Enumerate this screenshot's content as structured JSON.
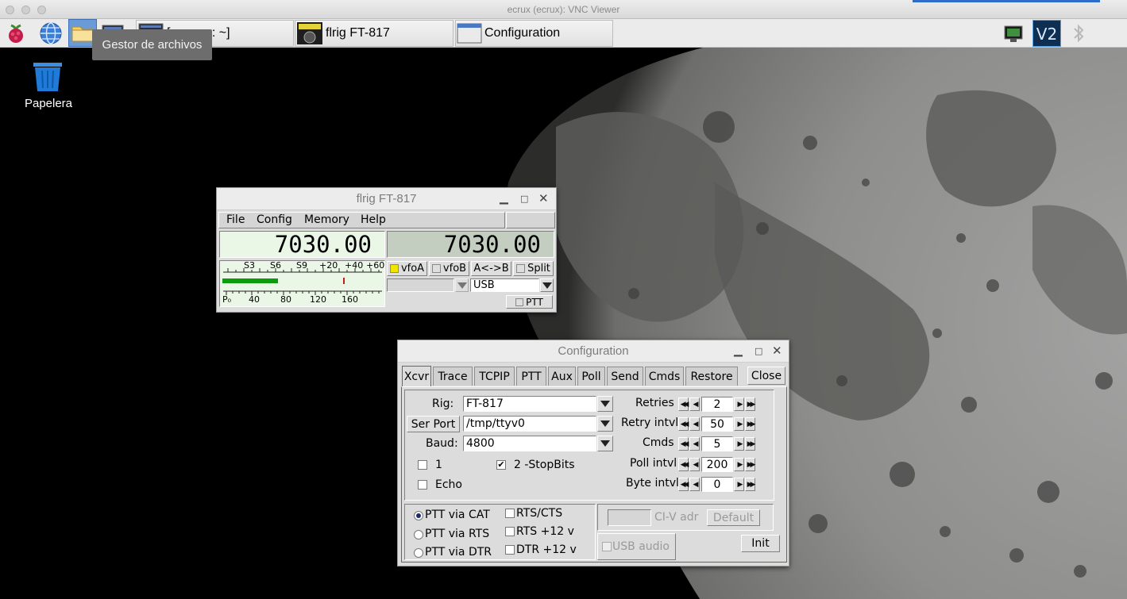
{
  "vnc": {
    "title": "ecrux (ecrux): VNC Viewer"
  },
  "taskbar": {
    "tooltip": "Gestor de archivos",
    "tasks": [
      {
        "label": "[...ecrux: ~]"
      },
      {
        "label": "flrig FT-817"
      },
      {
        "label": "Configuration"
      }
    ]
  },
  "desktop": {
    "trash_label": "Papelera"
  },
  "flrig": {
    "title": "flrig FT-817",
    "menu": [
      "File",
      "Config",
      "Memory",
      "Help"
    ],
    "vfoA_freq": "7030.00",
    "vfoB_freq": "7030.00",
    "smeter_top": [
      "S3",
      "S6",
      "S9",
      "+20",
      "+40",
      "+60"
    ],
    "smeter_bottom": [
      "P₀",
      "40",
      "80",
      "120",
      "160"
    ],
    "signal_level": 0.35,
    "buttons": {
      "vfoA": "vfoA",
      "vfoB": "vfoB",
      "swap": "A<->B",
      "split": "Split",
      "ptt": "PTT"
    },
    "mode": "USB",
    "colors": {
      "freq_a_bg": "#eaf6e6",
      "freq_b_bg": "#c3cec0",
      "meter_bar": "#0a9c0a",
      "vfoA_indicator": "#f2e600"
    }
  },
  "config": {
    "title": "Configuration",
    "tabs": [
      "Xcvr",
      "Trace",
      "TCPIP",
      "PTT",
      "Aux",
      "Poll",
      "Send",
      "Cmds",
      "Restore"
    ],
    "close_label": "Close",
    "rig_label": "Rig:",
    "rig_value": "FT-817",
    "serport_label": "Ser Port",
    "serport_value": "/tmp/ttyv0",
    "baud_label": "Baud:",
    "baud_value": "4800",
    "stopbits1_label": "1",
    "stopbits2_label": "2 -StopBits",
    "echo_label": "Echo",
    "retries_label": "Retries",
    "retries_value": "2",
    "retry_intvl_label": "Retry intvl",
    "retry_intvl_value": "50",
    "cmds_label": "Cmds",
    "cmds_value": "5",
    "poll_intvl_label": "Poll intvl",
    "poll_intvl_value": "200",
    "byte_intvl_label": "Byte intvl",
    "byte_intvl_value": "0",
    "ptt_via_cat": "PTT via CAT",
    "ptt_via_rts": "PTT via RTS",
    "ptt_via_dtr": "PTT via DTR",
    "rts_cts": "RTS/CTS",
    "rts_12v": "RTS +12 v",
    "dtr_12v": "DTR +12 v",
    "civ_label": "CI-V adr",
    "default_label": "Default",
    "usb_audio_label": "USB audio",
    "init_label": "Init"
  }
}
